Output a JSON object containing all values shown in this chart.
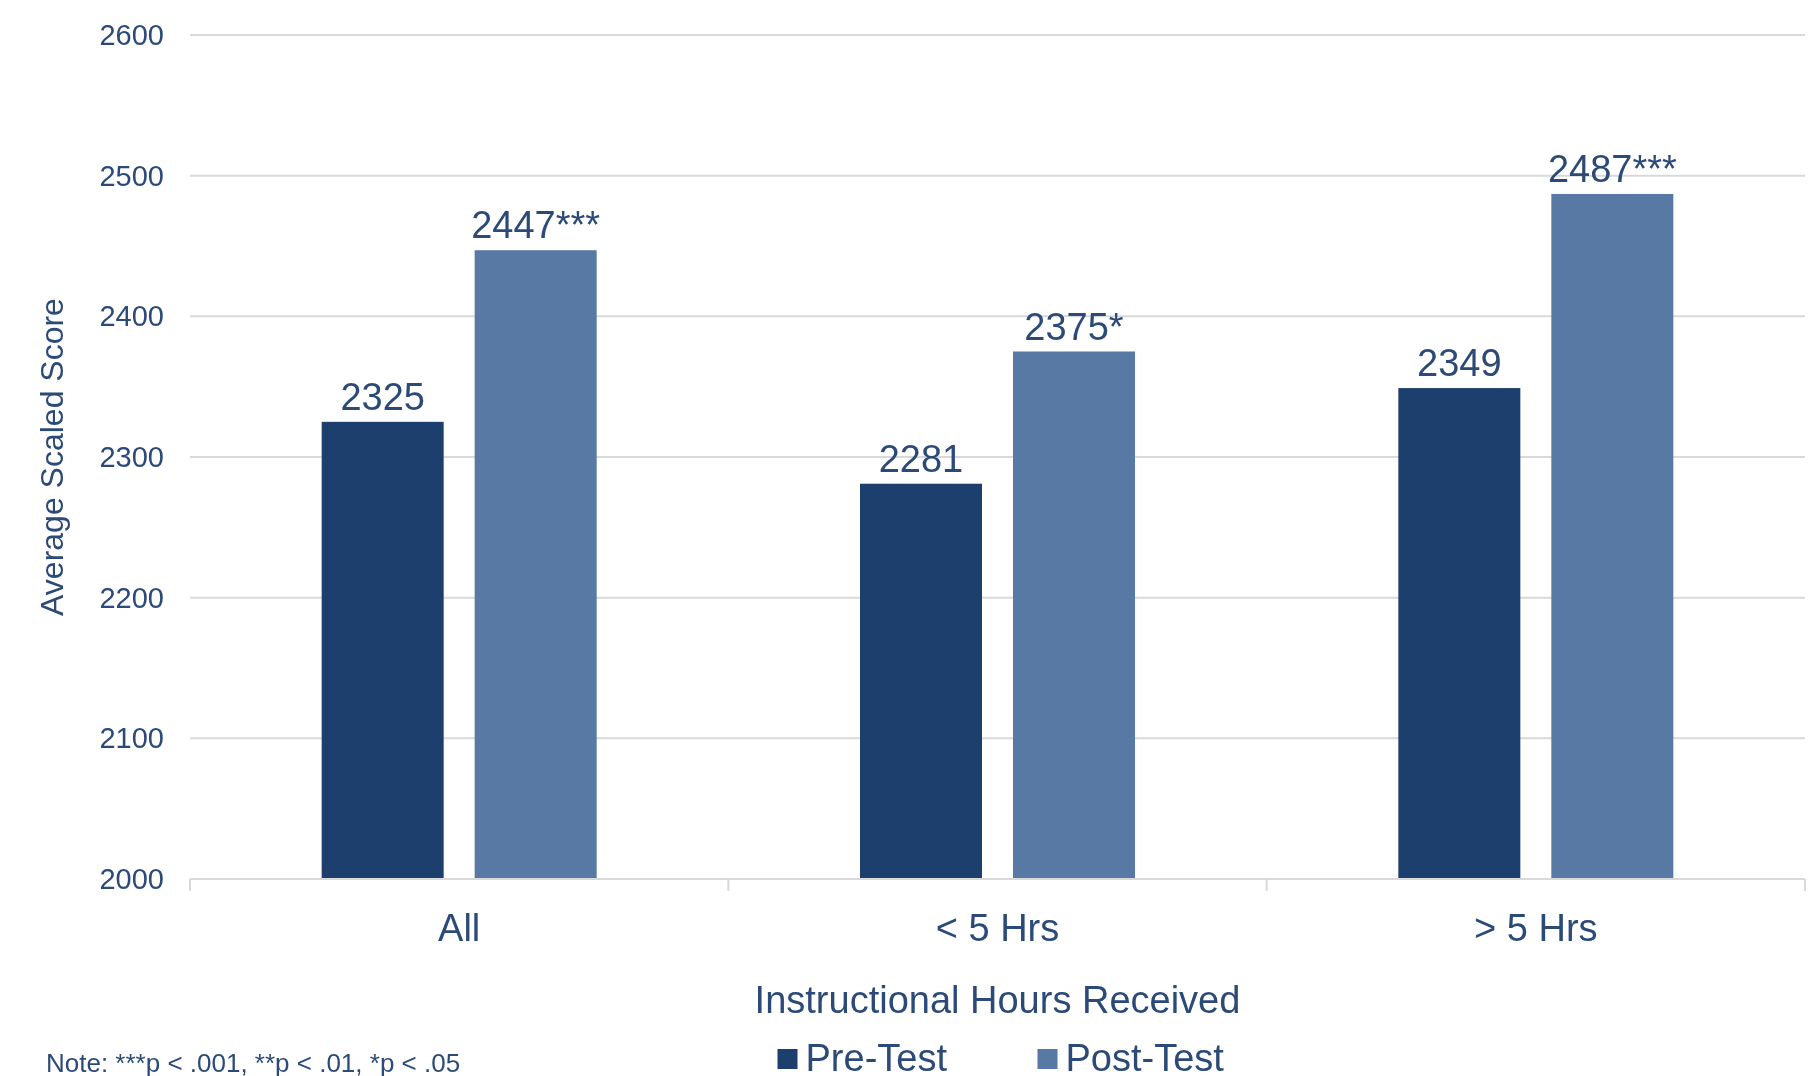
{
  "chart_data": {
    "type": "bar",
    "xlabel": "Instructional Hours Received",
    "ylabel": "Average Scaled Score",
    "categories": [
      "All",
      "< 5 Hrs",
      "> 5 Hrs"
    ],
    "series": [
      {
        "name": "Pre-Test",
        "color": "#1c3f6d",
        "values": [
          2325,
          2281,
          2349
        ],
        "value_labels": [
          "2325",
          "2281",
          "2349"
        ]
      },
      {
        "name": "Post-Test",
        "color": "#5779a3",
        "values": [
          2447,
          2375,
          2487
        ],
        "value_labels": [
          "2447***",
          "2375*",
          "2487***"
        ]
      }
    ],
    "ylim": [
      2000,
      2600
    ],
    "yticks": [
      2000,
      2100,
      2200,
      2300,
      2400,
      2500,
      2600
    ],
    "grid": "y",
    "legend": "bottom",
    "annotations": [
      "Note: ***p < .001, **p < .01, *p < .05"
    ]
  }
}
